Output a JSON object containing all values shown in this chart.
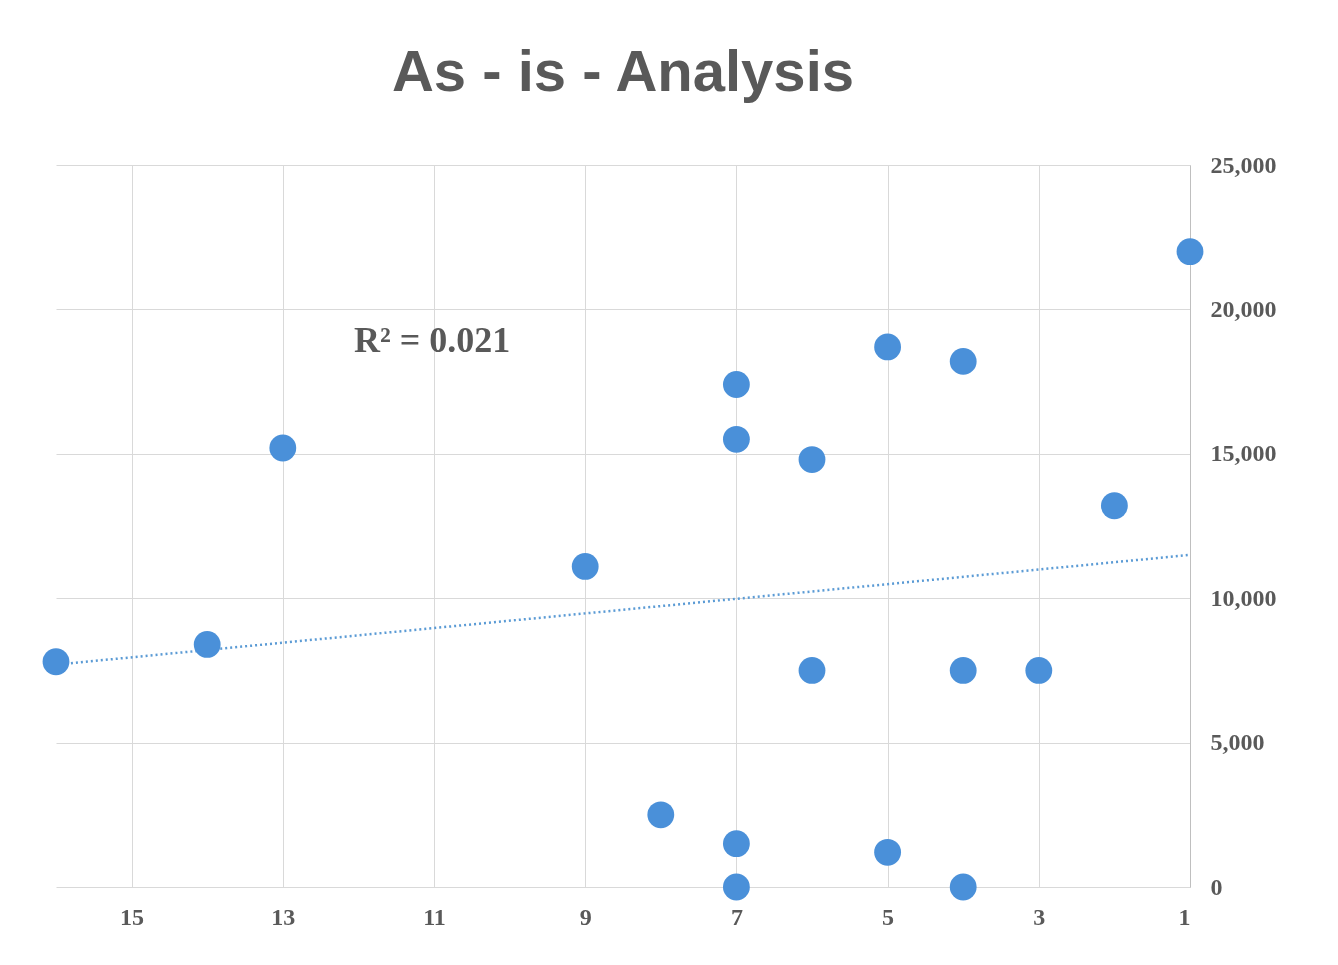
{
  "chart_data": {
    "type": "scatter",
    "title": "As - is - Analysis",
    "xlim": [
      16,
      1
    ],
    "xticks": [
      15,
      13,
      11,
      9,
      7,
      5,
      3,
      1
    ],
    "ylim": [
      0,
      25000
    ],
    "yticks": [
      0,
      {
        "value": 5000,
        "label": "5,000"
      },
      {
        "value": 10000,
        "label": "10,000"
      },
      {
        "value": 15000,
        "label": "15,000"
      },
      {
        "value": 20000,
        "label": "20,000"
      },
      {
        "value": 25000,
        "label": "25,000"
      }
    ],
    "grid": true,
    "annotations": [
      "R² = 0.021"
    ],
    "series": [
      {
        "marker": "circle",
        "color": "#4a90d9",
        "x": [
          16,
          14,
          13,
          9,
          8,
          7,
          7,
          7,
          7,
          6,
          6,
          5,
          5,
          4,
          4,
          4,
          3,
          2,
          1
        ],
        "values": [
          7800,
          8400,
          15200,
          11100,
          2500,
          17400,
          15500,
          1500,
          0,
          14800,
          7500,
          18700,
          1200,
          18200,
          7500,
          0,
          7500,
          13200,
          22000
        ]
      },
      {
        "type": "line",
        "color": "#5b9bd5",
        "line_style": "dotted",
        "x": [
          16,
          1
        ],
        "values": [
          7700,
          11500
        ]
      }
    ]
  }
}
